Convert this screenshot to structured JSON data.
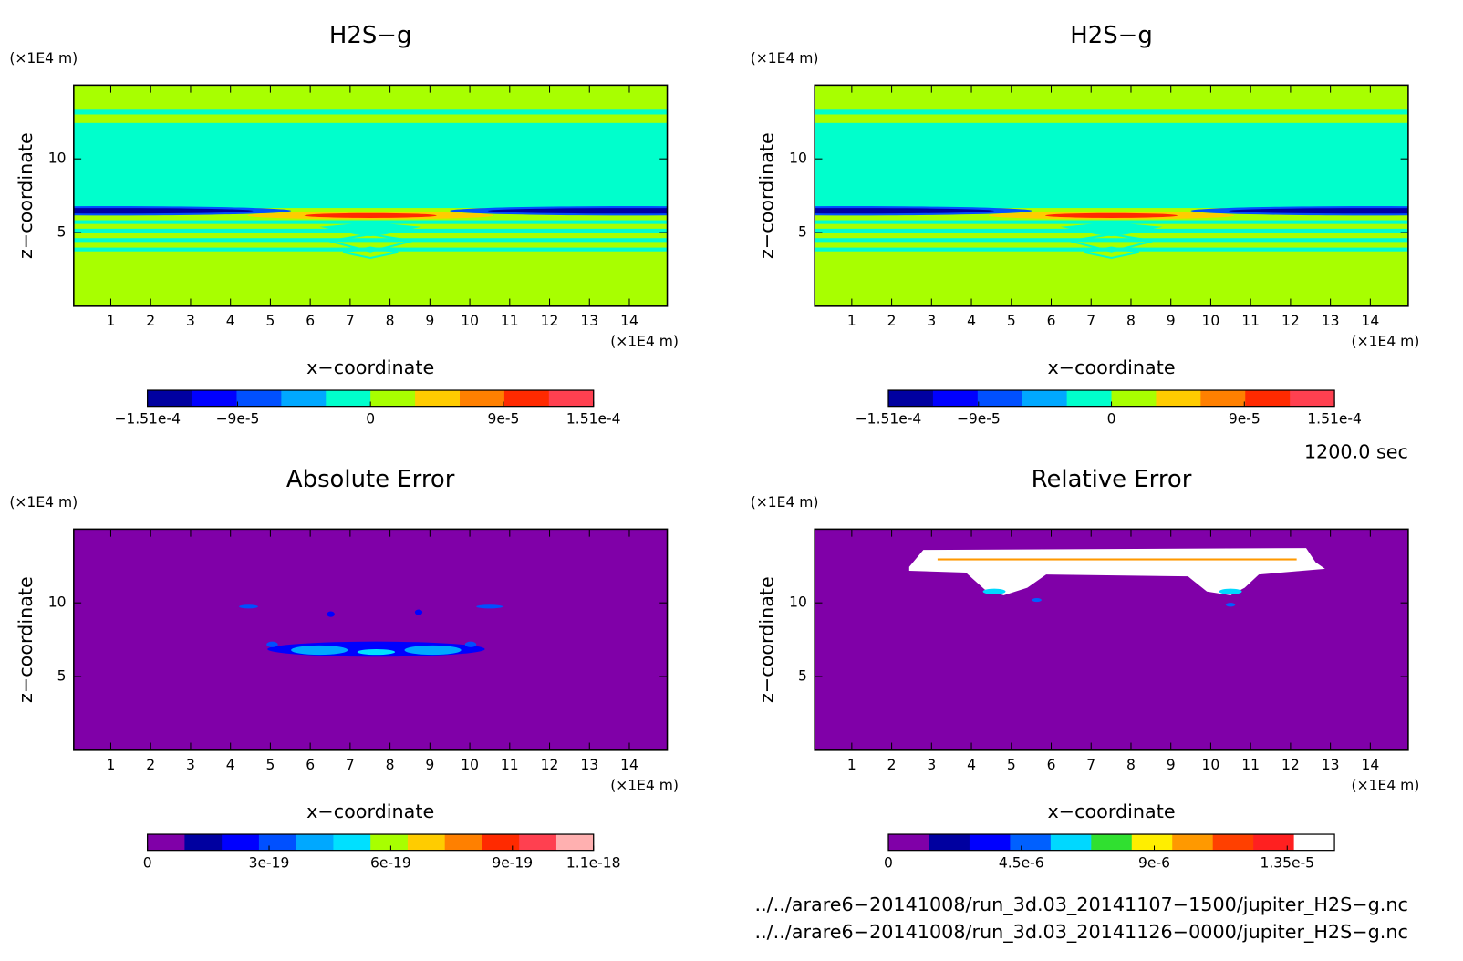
{
  "chart_data": [
    {
      "type": "contour",
      "title": "H2S−g",
      "xlabel": "x−coordinate",
      "ylabel": "z−coordinate",
      "xunit": "(×1E4 m)",
      "yunit": "(×1E4 m)",
      "xlim": [
        0.07,
        14.95
      ],
      "xticks": [
        1,
        2,
        3,
        4,
        5,
        6,
        7,
        8,
        9,
        10,
        11,
        12,
        13,
        14
      ],
      "ylim": [
        0,
        15
      ],
      "yticks": [
        5,
        10
      ],
      "colorbar": {
        "clim": [
          -0.000151,
          0.000151
        ],
        "colors": [
          "#0000a0",
          "#0000ff",
          "#0050ff",
          "#00a8ff",
          "#00ffcc",
          "#a8ff00",
          "#ffcc00",
          "#ff8000",
          "#ff2a00",
          "#ff4050"
        ],
        "ticks": [
          {
            "value": -0.000151,
            "label": "−1.51e-4"
          },
          {
            "value": -9e-05,
            "label": "−9e-5"
          },
          0,
          {
            "value": 9e-05,
            "label": "9e-5"
          },
          {
            "value": 0.000151,
            "label": "1.51e-4"
          }
        ]
      }
    },
    {
      "type": "contour",
      "title": "H2S−g",
      "xlabel": "x−coordinate",
      "ylabel": "z−coordinate",
      "xunit": "(×1E4 m)",
      "yunit": "(×1E4 m)",
      "xlim": [
        0.07,
        14.95
      ],
      "xticks": [
        1,
        2,
        3,
        4,
        5,
        6,
        7,
        8,
        9,
        10,
        11,
        12,
        13,
        14
      ],
      "ylim": [
        0,
        15
      ],
      "yticks": [
        5,
        10
      ],
      "colorbar": {
        "clim": [
          -0.000151,
          0.000151
        ],
        "colors": [
          "#0000a0",
          "#0000ff",
          "#0050ff",
          "#00a8ff",
          "#00ffcc",
          "#a8ff00",
          "#ffcc00",
          "#ff8000",
          "#ff2a00",
          "#ff4050"
        ],
        "ticks": [
          {
            "value": -0.000151,
            "label": "−1.51e-4"
          },
          {
            "value": -9e-05,
            "label": "−9e-5"
          },
          0,
          {
            "value": 9e-05,
            "label": "9e-5"
          },
          {
            "value": 0.000151,
            "label": "1.51e-4"
          }
        ]
      }
    },
    {
      "type": "contour",
      "title": "Absolute Error",
      "xlabel": "x−coordinate",
      "ylabel": "z−coordinate",
      "xunit": "(×1E4 m)",
      "yunit": "(×1E4 m)",
      "xlim": [
        0.07,
        14.95
      ],
      "xticks": [
        1,
        2,
        3,
        4,
        5,
        6,
        7,
        8,
        9,
        10,
        11,
        12,
        13,
        14
      ],
      "ylim": [
        0,
        15
      ],
      "yticks": [
        5,
        10
      ],
      "colorbar": {
        "clim": [
          0,
          1.1e-18
        ],
        "colors": [
          "#8000a8",
          "#0000a0",
          "#0000ff",
          "#0050ff",
          "#00a8ff",
          "#00e0ff",
          "#a8ff00",
          "#ffcc00",
          "#ff8000",
          "#ff2a00",
          "#ff4050",
          "#ffb0b0"
        ],
        "ticks": [
          0,
          {
            "value": 3e-19,
            "label": "3e-19"
          },
          {
            "value": 6e-19,
            "label": "6e-19"
          },
          {
            "value": 9e-19,
            "label": "9e-19"
          },
          {
            "value": 1.1e-18,
            "label": "1.1e-18"
          }
        ]
      }
    },
    {
      "type": "contour",
      "title": "Relative Error",
      "xlabel": "x−coordinate",
      "ylabel": "z−coordinate",
      "xunit": "(×1E4 m)",
      "yunit": "(×1E4 m)",
      "xlim": [
        0.07,
        14.95
      ],
      "xticks": [
        1,
        2,
        3,
        4,
        5,
        6,
        7,
        8,
        9,
        10,
        11,
        12,
        13,
        14
      ],
      "ylim": [
        0,
        15
      ],
      "yticks": [
        5,
        10
      ],
      "colorbar": {
        "clim": [
          0,
          1.51e-05
        ],
        "colors": [
          "#8000a8",
          "#0000a0",
          "#0000ff",
          "#0060ff",
          "#00d8ff",
          "#30e030",
          "#ffee00",
          "#ff9900",
          "#ff4000",
          "#ff2020",
          "#ffffff"
        ],
        "ticks": [
          0,
          {
            "value": 4.5e-06,
            "label": "4.5e-6"
          },
          {
            "value": 9e-06,
            "label": "9e-6"
          },
          {
            "value": 1.35e-05,
            "label": "1.35e-5"
          }
        ]
      }
    }
  ],
  "time": "1200.0 sec",
  "files": [
    "../../arare6−20141008/run_3d.03_20141107−1500/jupiter_H2S−g.nc",
    "../../arare6−20141008/run_3d.03_20141126−0000/jupiter_H2S−g.nc"
  ]
}
